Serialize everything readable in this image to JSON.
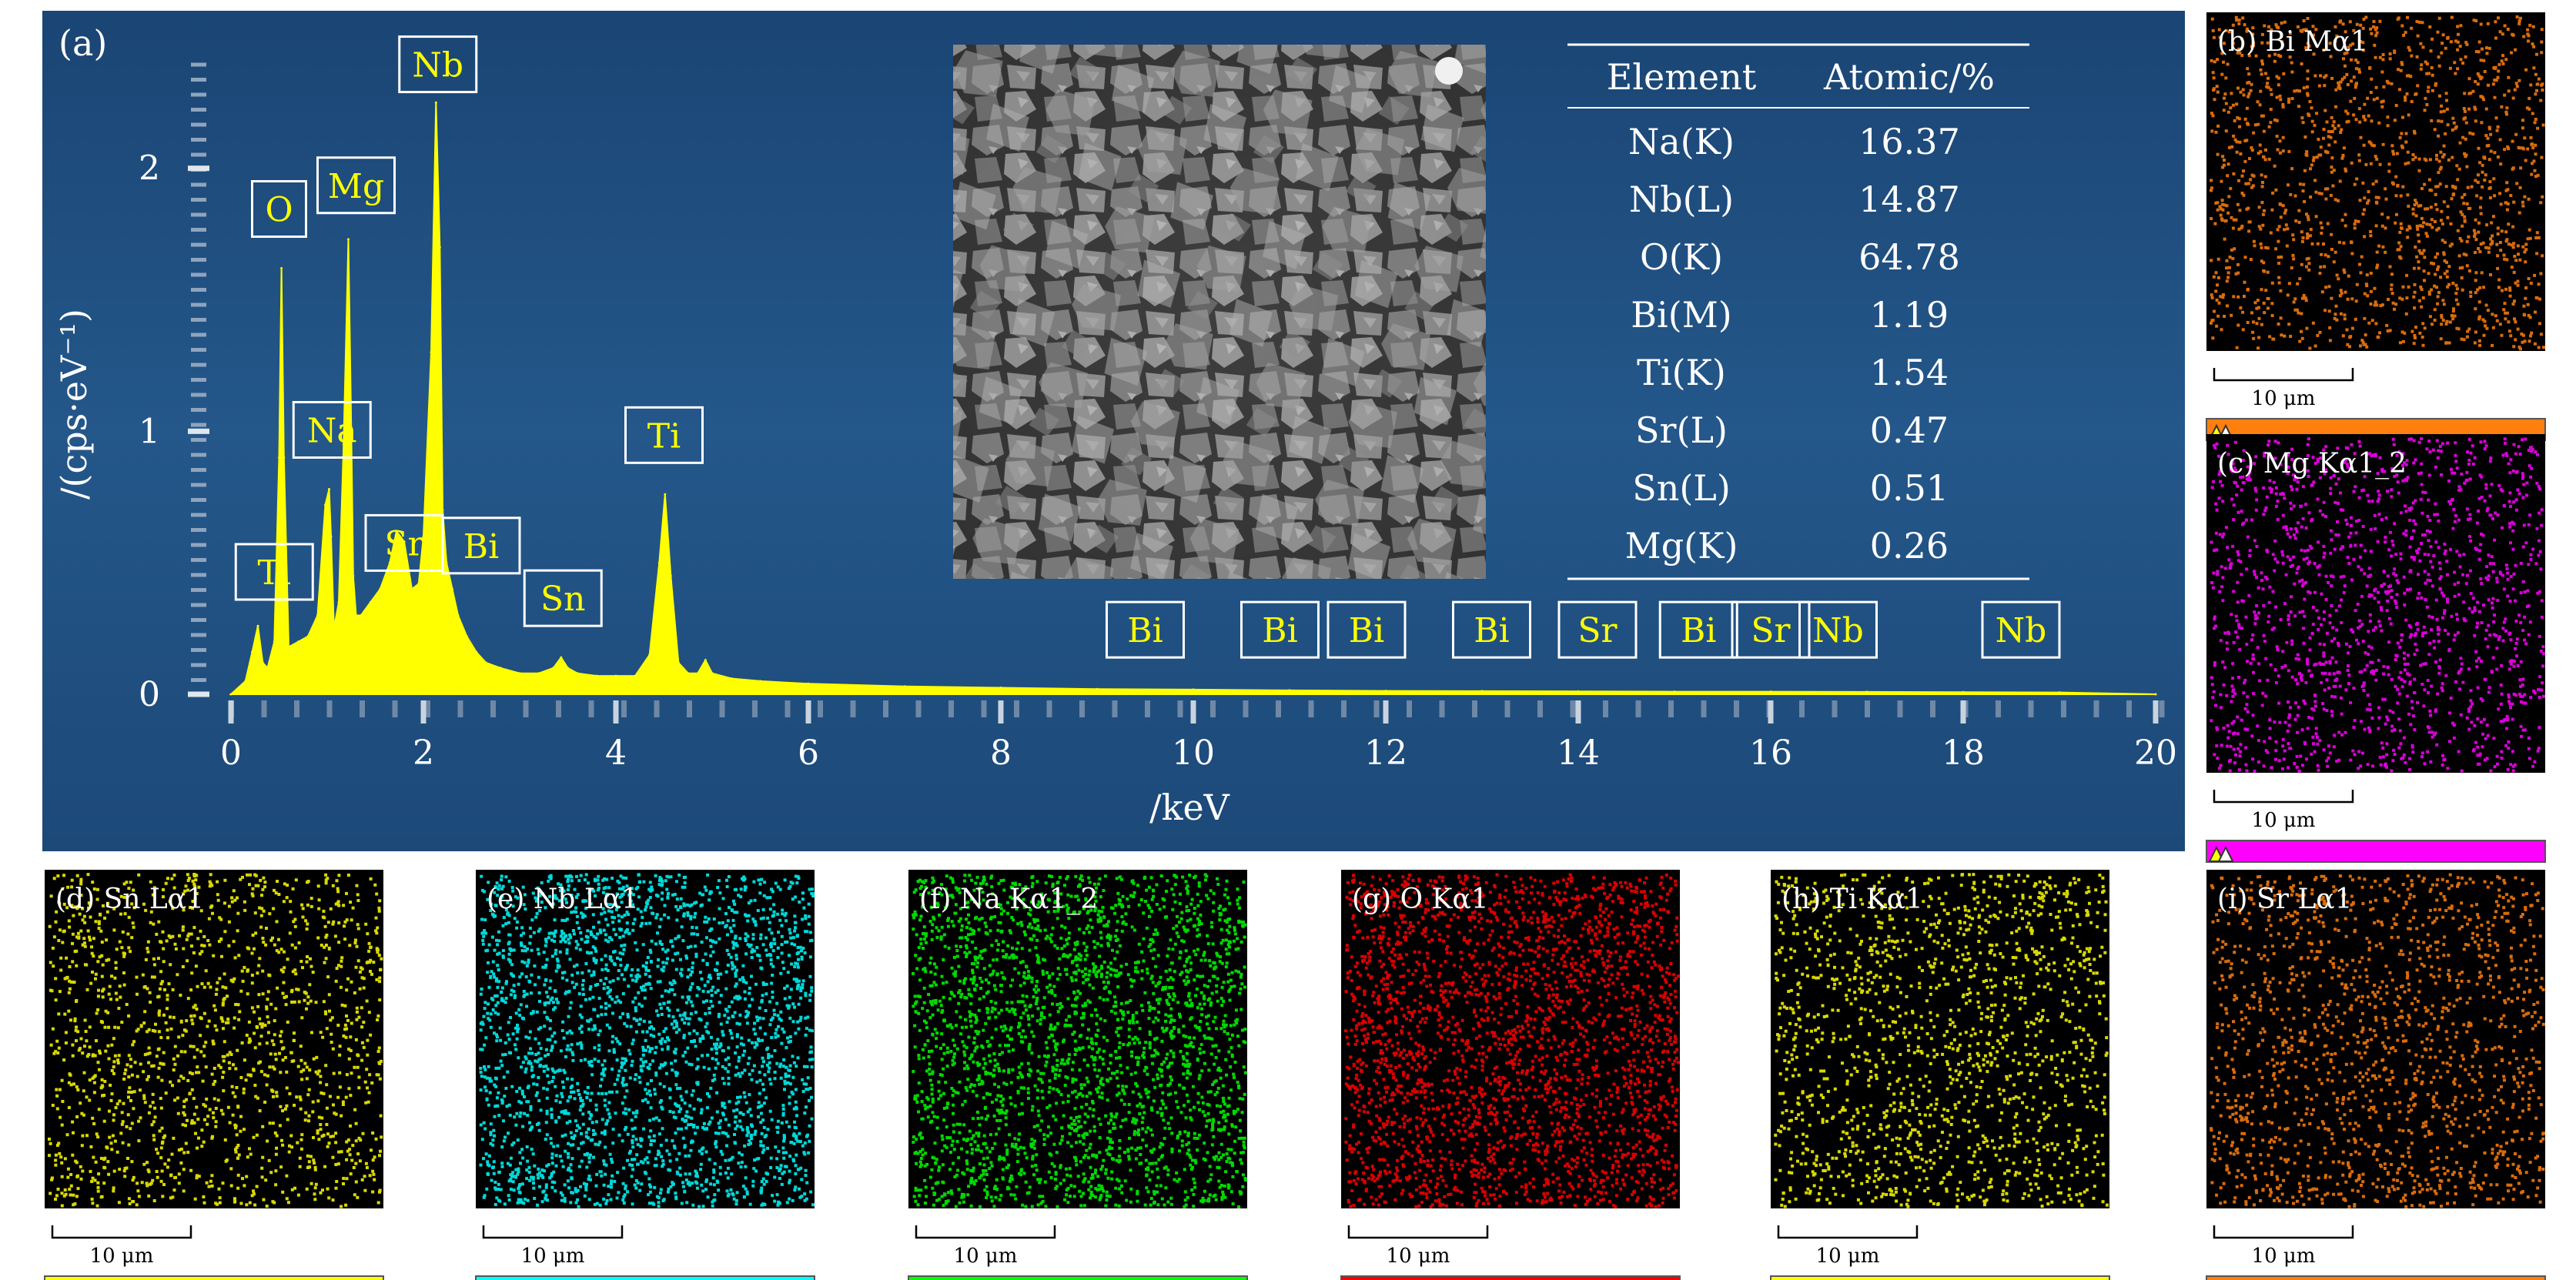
{
  "panel_a": {
    "label": "(a)",
    "sem_image": "sem-micrograph",
    "table": {
      "headers": [
        "Element",
        "Atomic/%"
      ],
      "rows": [
        [
          "Na(K)",
          "16.37"
        ],
        [
          "Nb(L)",
          "14.87"
        ],
        [
          "O(K)",
          "64.78"
        ],
        [
          "Bi(M)",
          "1.19"
        ],
        [
          "Ti(K)",
          "1.54"
        ],
        [
          "Sr(L)",
          "0.47"
        ],
        [
          "Sn(L)",
          "0.51"
        ],
        [
          "Mg(K)",
          "0.26"
        ]
      ]
    }
  },
  "maps": [
    {
      "label": "(b) Bi Mα1",
      "color": "#ff7f0e",
      "scale": "10 μm"
    },
    {
      "label": "(c) Mg Kα1_2",
      "color": "#ff00ff",
      "scale": "10 μm"
    },
    {
      "label": "(d) Sn Lα1",
      "color": "#ffff00",
      "scale": "10 μm"
    },
    {
      "label": "(e) Nb Lα1",
      "color": "#00ffff",
      "scale": "10 μm"
    },
    {
      "label": "(f) Na Kα1_2",
      "color": "#00ff00",
      "scale": "10 μm"
    },
    {
      "label": "(g) O Kα1",
      "color": "#ff0000",
      "scale": "10 μm"
    },
    {
      "label": "(h) Ti Kα1",
      "color": "#ffff00",
      "scale": "10 μm"
    },
    {
      "label": "(i) Sr Lα1",
      "color": "#ff7f0e",
      "scale": "10 μm"
    }
  ],
  "colors": {
    "panel_bg": "#1d4a78",
    "spectrum": "#ffff00",
    "label_text": "#ffff00",
    "axis_text": "#ffffff"
  },
  "chart_data": {
    "type": "area",
    "xlabel": "/keV",
    "ylabel": "/(cps·eV⁻¹)",
    "xlim": [
      0,
      20
    ],
    "ylim": [
      0,
      2.4
    ],
    "xticks": [
      0,
      2,
      4,
      6,
      8,
      10,
      12,
      14,
      16,
      18,
      20
    ],
    "yticks": [
      0,
      1,
      2
    ],
    "series": [
      {
        "x": [
          0.0,
          0.15,
          0.22,
          0.28,
          0.33,
          0.38,
          0.45,
          0.5,
          0.525,
          0.55,
          0.6,
          0.7,
          0.8,
          0.9,
          0.98,
          1.02,
          1.04,
          1.07,
          1.12,
          1.17,
          1.22,
          1.25,
          1.27,
          1.3,
          1.35,
          1.45,
          1.55,
          1.65,
          1.72,
          1.8,
          1.88,
          1.95,
          2.0,
          2.08,
          2.13,
          2.17,
          2.2,
          2.24,
          2.3,
          2.36,
          2.45,
          2.55,
          2.65,
          2.8,
          3.0,
          3.2,
          3.35,
          3.43,
          3.5,
          3.6,
          3.8,
          4.0,
          4.2,
          4.35,
          4.45,
          4.51,
          4.57,
          4.65,
          4.75,
          4.85,
          4.93,
          5.0,
          5.2,
          5.5,
          6.0,
          7.0,
          8.0,
          9.0,
          10.0,
          11.0,
          12.0,
          13.0,
          14.0,
          15.0,
          16.0,
          17.0,
          18.0,
          19.0,
          20.0
        ],
        "values": [
          0.0,
          0.05,
          0.16,
          0.26,
          0.12,
          0.1,
          0.2,
          0.9,
          1.62,
          0.9,
          0.18,
          0.2,
          0.22,
          0.3,
          0.72,
          0.78,
          0.6,
          0.25,
          0.35,
          0.95,
          1.73,
          1.0,
          0.45,
          0.3,
          0.3,
          0.35,
          0.4,
          0.5,
          0.62,
          0.58,
          0.4,
          0.42,
          0.6,
          1.3,
          2.25,
          1.7,
          0.7,
          0.5,
          0.4,
          0.3,
          0.22,
          0.16,
          0.12,
          0.1,
          0.08,
          0.08,
          0.1,
          0.14,
          0.1,
          0.08,
          0.07,
          0.07,
          0.07,
          0.15,
          0.5,
          0.76,
          0.45,
          0.12,
          0.08,
          0.08,
          0.13,
          0.08,
          0.06,
          0.05,
          0.04,
          0.03,
          0.025,
          0.02,
          0.018,
          0.015,
          0.013,
          0.012,
          0.011,
          0.01,
          0.01,
          0.009,
          0.008,
          0.007,
          0.0
        ]
      }
    ],
    "peak_labels": [
      {
        "text": "Ti",
        "x": 0.45,
        "y": 0.36
      },
      {
        "text": "O",
        "x": 0.5,
        "y": 1.74
      },
      {
        "text": "Na",
        "x": 1.05,
        "y": 0.9
      },
      {
        "text": "Mg",
        "x": 1.3,
        "y": 1.83
      },
      {
        "text": "Sr",
        "x": 1.8,
        "y": 0.47
      },
      {
        "text": "Bi",
        "x": 2.6,
        "y": 0.46
      },
      {
        "text": "Nb",
        "x": 2.15,
        "y": 2.29
      },
      {
        "text": "Sn",
        "x": 3.45,
        "y": 0.26
      },
      {
        "text": "Ti",
        "x": 4.5,
        "y": 0.88
      },
      {
        "text": "Bi",
        "x": 9.5,
        "y": 0.14
      },
      {
        "text": "Bi",
        "x": 10.9,
        "y": 0.14
      },
      {
        "text": "Bi",
        "x": 11.8,
        "y": 0.14
      },
      {
        "text": "Bi",
        "x": 13.1,
        "y": 0.14
      },
      {
        "text": "Sr",
        "x": 14.2,
        "y": 0.14
      },
      {
        "text": "Bi",
        "x": 15.25,
        "y": 0.14
      },
      {
        "text": "Sr",
        "x": 16.0,
        "y": 0.14
      },
      {
        "text": "Nb",
        "x": 16.7,
        "y": 0.14
      },
      {
        "text": "Nb",
        "x": 18.6,
        "y": 0.14
      }
    ]
  }
}
